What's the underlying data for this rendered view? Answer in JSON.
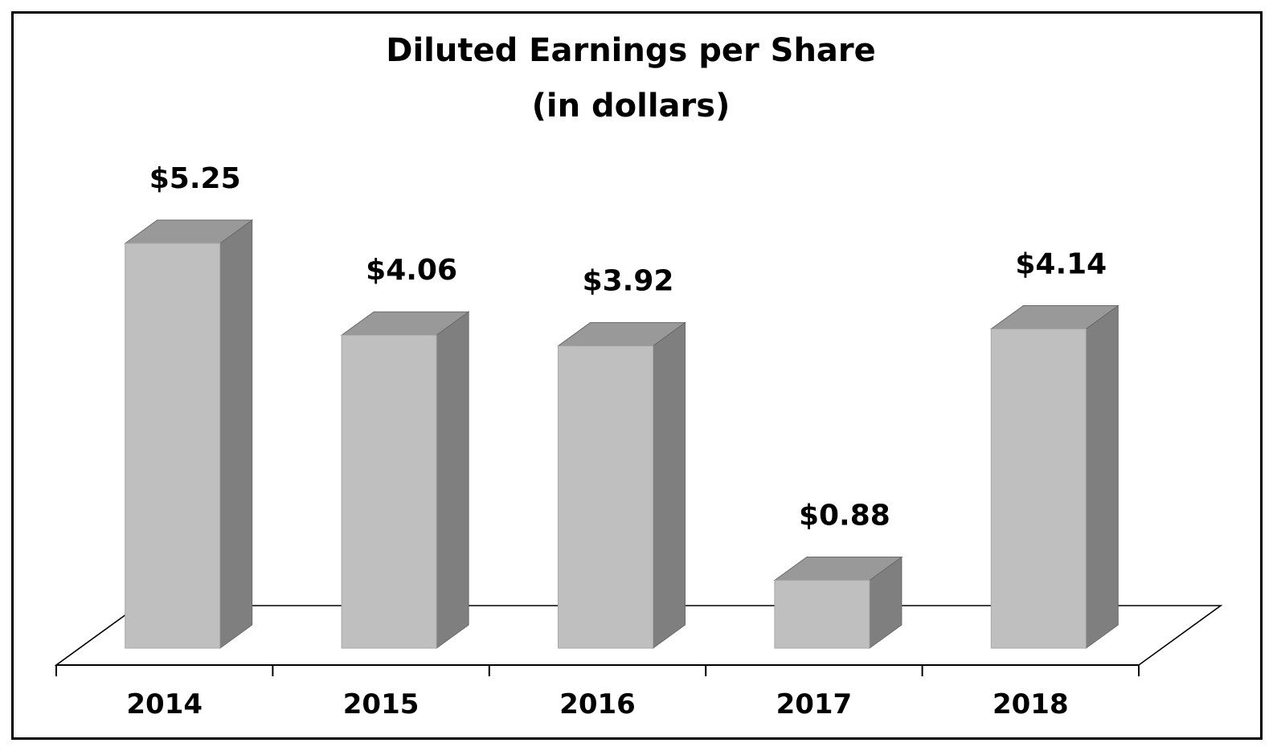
{
  "chart_data": {
    "type": "bar",
    "style": "3d",
    "title_lines": [
      "Diluted Earnings per Share",
      "(in dollars)"
    ],
    "categories": [
      "2014",
      "2015",
      "2016",
      "2017",
      "2018"
    ],
    "values": [
      5.25,
      4.06,
      3.92,
      0.88,
      4.14
    ],
    "value_labels": [
      "$5.25",
      "$4.06",
      "$3.92",
      "$0.88",
      "$4.14"
    ],
    "xlabel": "",
    "ylabel": "",
    "ylim": [
      0,
      6
    ],
    "grid": false,
    "legend": "none",
    "colors": {
      "bar_front": "#bfbfbf",
      "bar_side": "#7f7f7f",
      "bar_top": "#999999",
      "floor_line": "#000000"
    }
  }
}
